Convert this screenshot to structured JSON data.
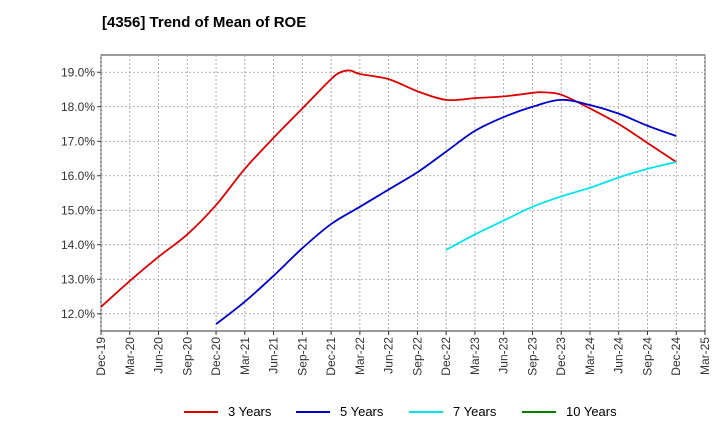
{
  "title": "[4356]  Trend of Mean of ROE",
  "chart_data": {
    "type": "line",
    "title": "[4356]  Trend of Mean of ROE",
    "xlabel": "",
    "ylabel": "",
    "x_ticks": [
      "Dec-19",
      "Mar-20",
      "Jun-20",
      "Sep-20",
      "Dec-20",
      "Mar-21",
      "Jun-21",
      "Sep-21",
      "Dec-21",
      "Mar-22",
      "Jun-22",
      "Sep-22",
      "Dec-22",
      "Mar-23",
      "Jun-23",
      "Sep-23",
      "Dec-23",
      "Mar-24",
      "Jun-24",
      "Sep-24",
      "Dec-24",
      "Mar-25"
    ],
    "y_ticks": [
      "12.0%",
      "13.0%",
      "14.0%",
      "15.0%",
      "16.0%",
      "17.0%",
      "18.0%",
      "19.0%"
    ],
    "y_tick_values": [
      12,
      13,
      14,
      15,
      16,
      17,
      18,
      19
    ],
    "ylim": [
      11.5,
      19.5
    ],
    "grid": true,
    "legend_position": "bottom",
    "series": [
      {
        "name": "3 Years",
        "color": "#dd0000",
        "x": [
          "Dec-19",
          "Mar-20",
          "Jun-20",
          "Sep-20",
          "Dec-20",
          "Mar-21",
          "Jun-21",
          "Sep-21",
          "Dec-21",
          "Jan-22",
          "Feb-22",
          "Mar-22",
          "Jun-22",
          "Sep-22",
          "Dec-22",
          "Mar-23",
          "Jun-23",
          "Sep-23",
          "Oct-23",
          "Dec-23",
          "Mar-24",
          "Jun-24",
          "Sep-24",
          "Dec-24"
        ],
        "values": [
          12.2,
          12.95,
          13.65,
          14.3,
          15.15,
          16.2,
          17.1,
          17.95,
          18.8,
          19.0,
          19.05,
          18.95,
          18.8,
          18.45,
          18.2,
          18.25,
          18.3,
          18.4,
          18.42,
          18.35,
          17.95,
          17.5,
          16.95,
          16.4
        ]
      },
      {
        "name": "5 Years",
        "color": "#0000cc",
        "x": [
          "Dec-20",
          "Mar-21",
          "Jun-21",
          "Sep-21",
          "Dec-21",
          "Mar-22",
          "Jun-22",
          "Sep-22",
          "Dec-22",
          "Mar-23",
          "Jun-23",
          "Sep-23",
          "Dec-23",
          "Mar-24",
          "Jun-24",
          "Sep-24",
          "Dec-24"
        ],
        "values": [
          11.7,
          12.35,
          13.1,
          13.9,
          14.6,
          15.1,
          15.6,
          16.1,
          16.7,
          17.3,
          17.7,
          18.0,
          18.2,
          18.05,
          17.8,
          17.45,
          17.15
        ]
      },
      {
        "name": "7 Years",
        "color": "#00e5ee",
        "x": [
          "Dec-22",
          "Mar-23",
          "Jun-23",
          "Sep-23",
          "Dec-23",
          "Mar-24",
          "Jun-24",
          "Sep-24",
          "Dec-24"
        ],
        "values": [
          13.85,
          14.3,
          14.7,
          15.1,
          15.4,
          15.65,
          15.95,
          16.2,
          16.4
        ]
      },
      {
        "name": "10 Years",
        "color": "#008000",
        "x": [],
        "values": []
      }
    ]
  }
}
